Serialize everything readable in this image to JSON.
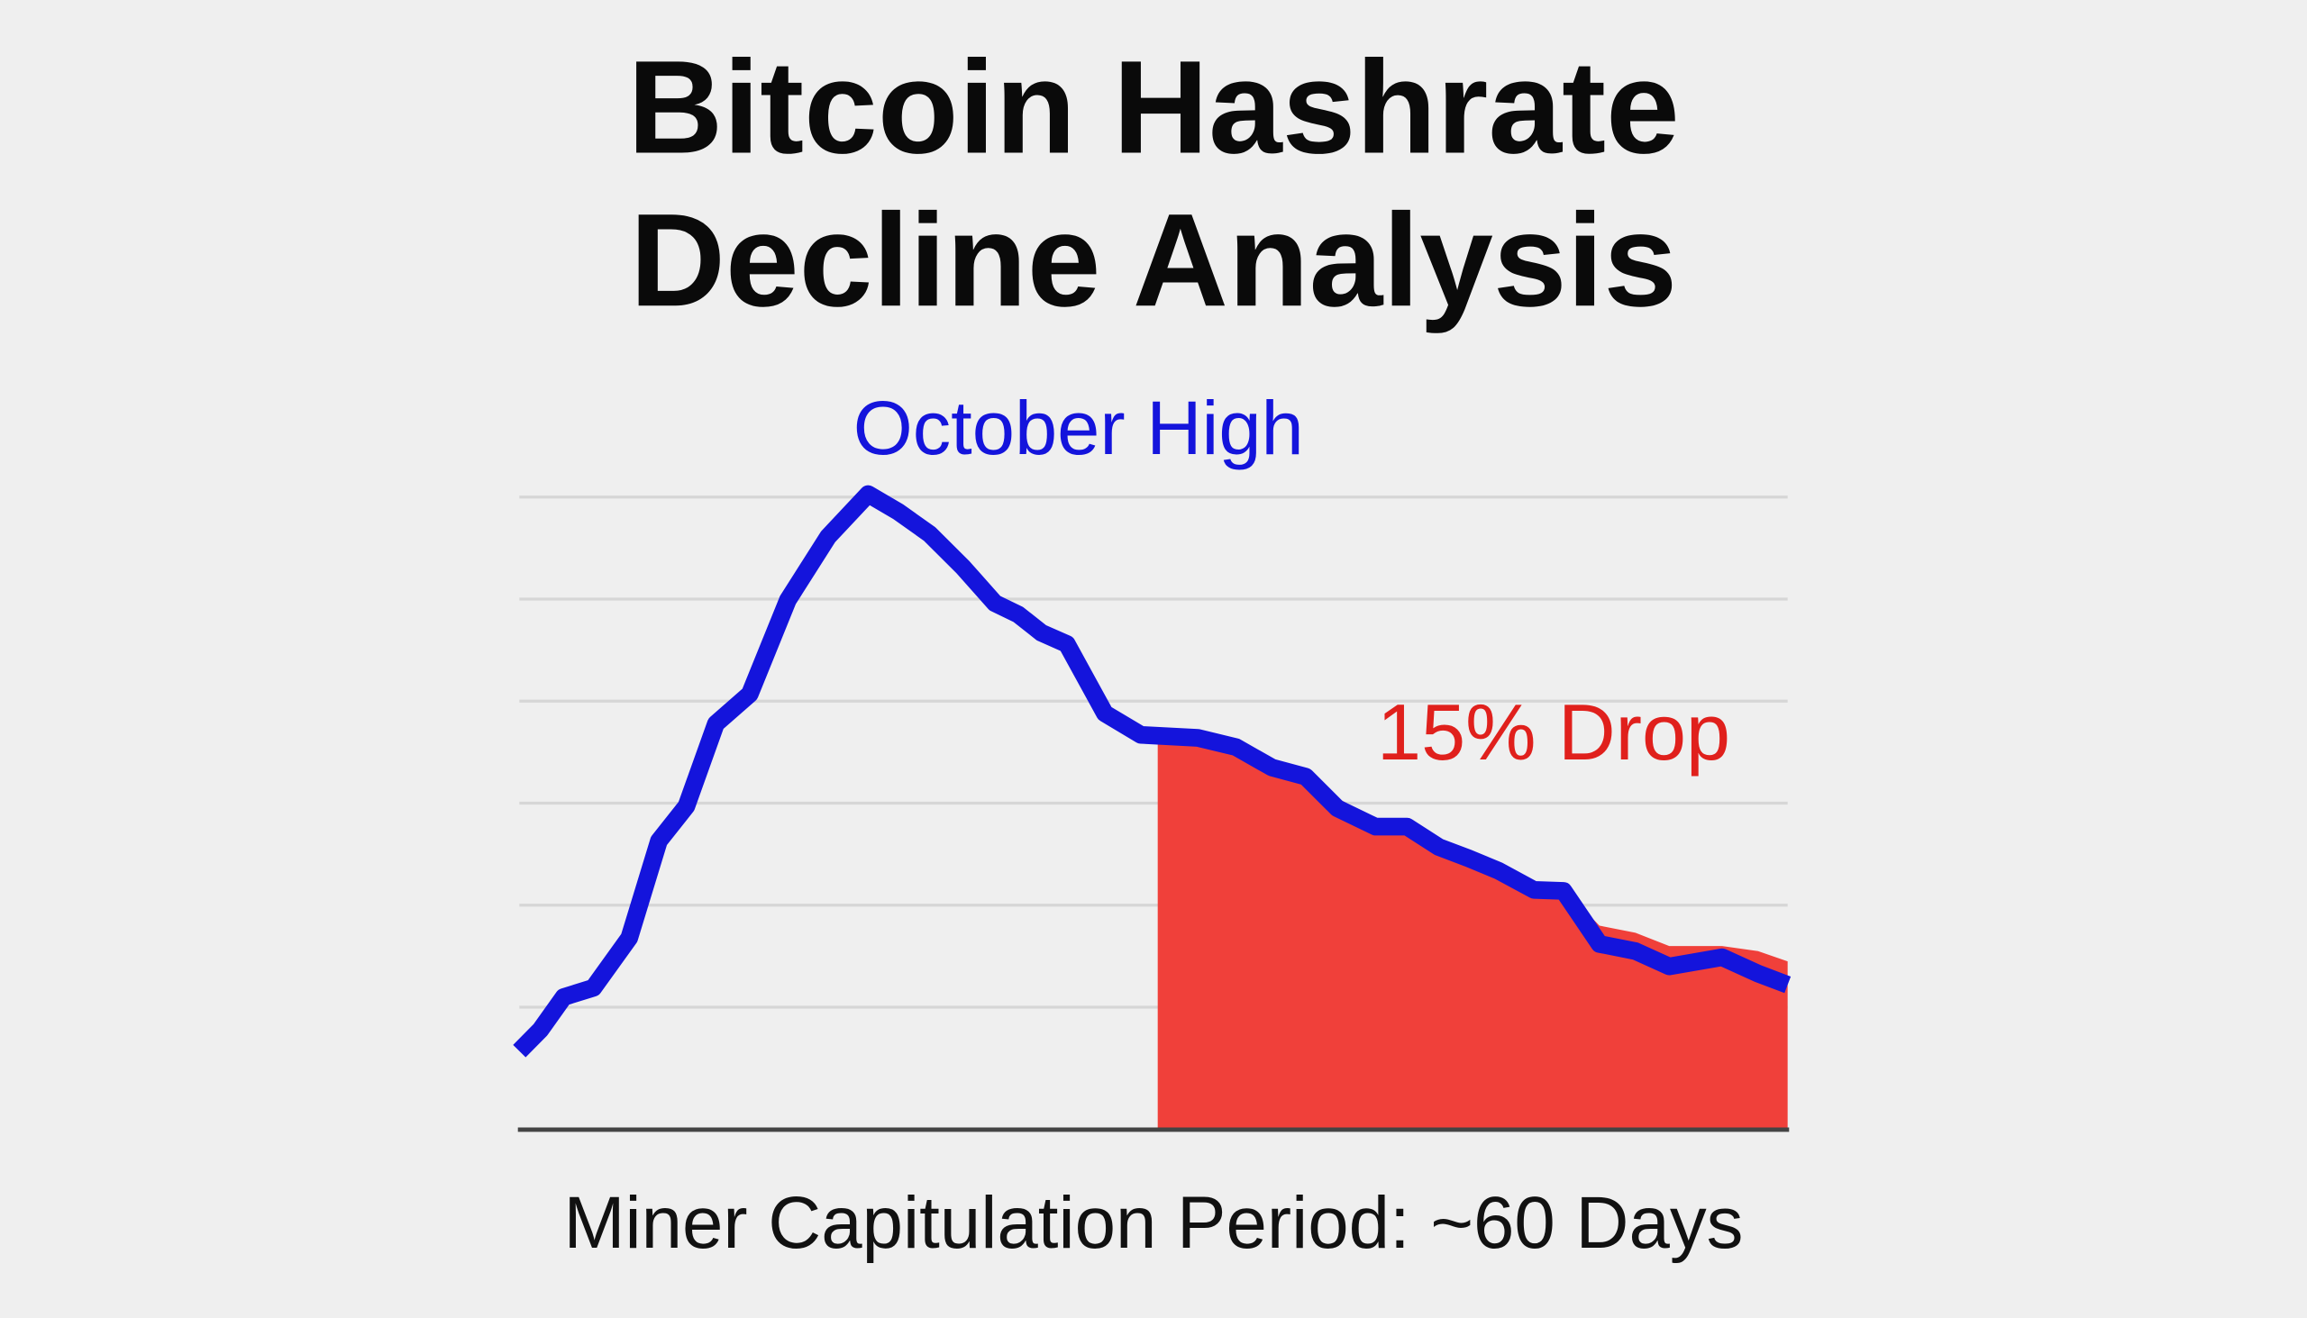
{
  "chart_data": {
    "type": "line",
    "title": [
      "Bitcoin Hashrate",
      "Decline Analysis"
    ],
    "annotations": [
      "October High",
      "15% Drop"
    ],
    "footer": "Miner Capitulation Period: ~60 Days",
    "xlim": [
      0,
      60
    ],
    "ylim": [
      -0.2,
      6.1
    ],
    "yticks": [
      1,
      2,
      3,
      4,
      5,
      6
    ],
    "grid": true,
    "series": [
      {
        "type": "line",
        "color": "#1414dc",
        "x": [
          0,
          1.0,
          2.1,
          3.5,
          5.2,
          6.6,
          7.9,
          9.3,
          10.9,
          12.7,
          14.6,
          16.5,
          17.9,
          19.4,
          21.0,
          22.5,
          23.6,
          24.7,
          25.9,
          27.7,
          29.4,
          32.1,
          33.9,
          35.6,
          37.2,
          38.7,
          40.5,
          42.0,
          43.5,
          44.9,
          46.3,
          48.0,
          49.4,
          51.1,
          52.8,
          54.4,
          56.9,
          58.6,
          60.0
        ],
        "values": [
          0.57,
          0.78,
          1.1,
          1.19,
          1.68,
          2.63,
          2.97,
          3.78,
          4.07,
          4.99,
          5.61,
          6.03,
          5.86,
          5.64,
          5.31,
          4.96,
          4.85,
          4.67,
          4.56,
          3.88,
          3.67,
          3.64,
          3.55,
          3.35,
          3.26,
          2.95,
          2.77,
          2.77,
          2.57,
          2.46,
          2.34,
          2.15,
          2.14,
          1.62,
          1.55,
          1.4,
          1.49,
          1.33,
          1.22
        ]
      },
      {
        "type": "area",
        "color": "#f0403a",
        "x": [
          30.2,
          32.1,
          33.9,
          35.6,
          37.2,
          38.7,
          40.5,
          42.0,
          43.5,
          44.9,
          46.3,
          48.0,
          49.4,
          51.1,
          52.8,
          54.4,
          56.9,
          58.6,
          60.0
        ],
        "values": [
          3.59,
          3.64,
          3.55,
          3.38,
          3.3,
          3.05,
          2.85,
          2.8,
          2.6,
          2.5,
          2.38,
          2.17,
          2.16,
          1.8,
          1.73,
          1.6,
          1.6,
          1.55,
          1.45
        ]
      }
    ]
  }
}
